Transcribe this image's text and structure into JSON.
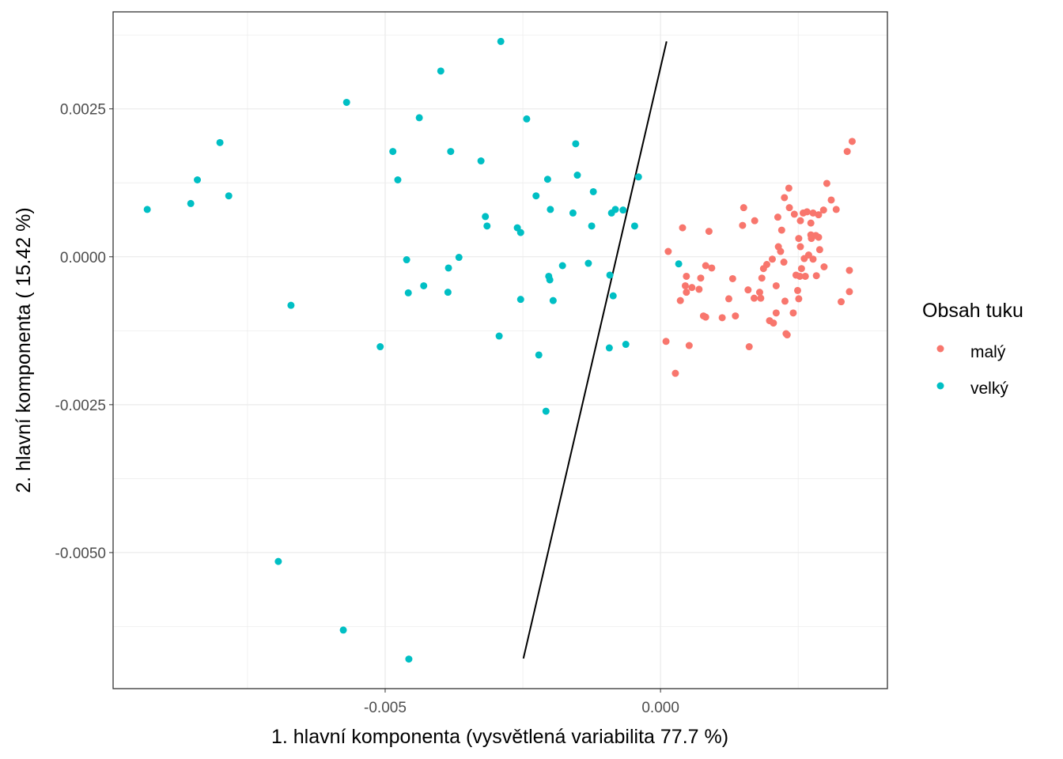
{
  "chart_data": {
    "type": "scatter",
    "title": "",
    "xlabel": "1. hlavní komponenta (vysvětlená variabilita 77.7 %)",
    "ylabel": "2. hlavní komponenta ( 15.42 %)",
    "xlim": [
      -0.00994,
      0.00412
    ],
    "ylim": [
      -0.0073,
      0.00414
    ],
    "x_ticks": [
      -0.005,
      0.0
    ],
    "x_tick_labels": [
      "-0.005",
      "0.000"
    ],
    "y_ticks": [
      0.0025,
      0.0,
      -0.0025,
      -0.005
    ],
    "y_tick_labels": [
      "0.0025",
      "0.0000",
      "-0.0025",
      "-0.0050"
    ],
    "grid": true,
    "legend": {
      "title": "Obsah tuku",
      "position": "right",
      "entries": [
        "malý",
        "velký"
      ]
    },
    "colors": {
      "malý": "#F8766D",
      "velký": "#00BFC4",
      "line": "#000000"
    },
    "series": [
      {
        "name": "malý",
        "points": [
          [
            0.00014,
            9e-05
          ],
          [
            0.0001,
            -0.00143
          ],
          [
            0.00027,
            -0.00197
          ],
          [
            0.00036,
            -0.00074
          ],
          [
            0.0004,
            0.00049
          ],
          [
            0.00045,
            -0.00049
          ],
          [
            0.00047,
            -0.00033
          ],
          [
            0.00047,
            -0.0006
          ],
          [
            0.00052,
            -0.0015
          ],
          [
            0.00057,
            -0.00052
          ],
          [
            0.0007,
            -0.00055
          ],
          [
            0.00073,
            -0.00036
          ],
          [
            0.00078,
            -0.001
          ],
          [
            0.00082,
            -0.00102
          ],
          [
            0.00082,
            -0.00015
          ],
          [
            0.00088,
            0.00043
          ],
          [
            0.00093,
            -0.00019
          ],
          [
            0.00112,
            -0.00103
          ],
          [
            0.00124,
            -0.00071
          ],
          [
            0.00131,
            -0.00037
          ],
          [
            0.00136,
            -0.001
          ],
          [
            0.00149,
            0.00053
          ],
          [
            0.00151,
            0.00083
          ],
          [
            0.00159,
            -0.00056
          ],
          [
            0.00161,
            -0.00152
          ],
          [
            0.0017,
            -0.0007
          ],
          [
            0.00171,
            0.00061
          ],
          [
            0.0018,
            -0.0006
          ],
          [
            0.00182,
            -0.0007
          ],
          [
            0.00184,
            -0.00036
          ],
          [
            0.00187,
            -0.0002
          ],
          [
            0.00193,
            -0.00013
          ],
          [
            0.00198,
            -0.00108
          ],
          [
            0.00203,
            -4e-05
          ],
          [
            0.00205,
            -0.00112
          ],
          [
            0.0021,
            -0.00095
          ],
          [
            0.0021,
            -0.00049
          ],
          [
            0.00213,
            0.00067
          ],
          [
            0.00214,
            0.00017
          ],
          [
            0.00218,
            9e-05
          ],
          [
            0.0022,
            0.00045
          ],
          [
            0.00224,
            -9e-05
          ],
          [
            0.00225,
            0.001
          ],
          [
            0.00226,
            -0.00075
          ],
          [
            0.00228,
            -0.0013
          ],
          [
            0.0023,
            -0.00132
          ],
          [
            0.00233,
            0.00116
          ],
          [
            0.00234,
            0.00083
          ],
          [
            0.00241,
            -0.00095
          ],
          [
            0.00243,
            0.00072
          ],
          [
            0.00246,
            -0.00031
          ],
          [
            0.00249,
            -0.00057
          ],
          [
            0.00251,
            0.00031
          ],
          [
            0.00251,
            -0.00071
          ],
          [
            0.00253,
            -0.00033
          ],
          [
            0.00254,
            0.00017
          ],
          [
            0.00254,
            0.00061
          ],
          [
            0.00256,
            -0.0002
          ],
          [
            0.00259,
            0.00074
          ],
          [
            0.00261,
            -3e-05
          ],
          [
            0.00263,
            -0.00033
          ],
          [
            0.00266,
            0.00076
          ],
          [
            0.00269,
            3e-05
          ],
          [
            0.00273,
            0.00057
          ],
          [
            0.00273,
            0.00037
          ],
          [
            0.00274,
            0.00031
          ],
          [
            0.00277,
            -4e-05
          ],
          [
            0.00277,
            0.00074
          ],
          [
            0.00282,
            0.00036
          ],
          [
            0.00283,
            -0.00032
          ],
          [
            0.00287,
            0.00071
          ],
          [
            0.00287,
            0.00033
          ],
          [
            0.00289,
            0.00012
          ],
          [
            0.00296,
            0.00079
          ],
          [
            0.00297,
            -0.00017
          ],
          [
            0.00302,
            0.00124
          ],
          [
            0.0031,
            0.00096
          ],
          [
            0.00319,
            0.0008
          ],
          [
            0.00328,
            -0.00076
          ],
          [
            0.00339,
            0.00178
          ],
          [
            0.00343,
            -0.00023
          ],
          [
            0.00343,
            -0.00059
          ],
          [
            0.00348,
            0.00195
          ]
        ]
      },
      {
        "name": "velký",
        "points": [
          [
            -0.00932,
            0.0008
          ],
          [
            -0.00853,
            0.0009
          ],
          [
            -0.00841,
            0.0013
          ],
          [
            -0.008,
            0.00193
          ],
          [
            -0.00784,
            0.00103
          ],
          [
            -0.00671,
            -0.00082
          ],
          [
            -0.00694,
            -0.00515
          ],
          [
            -0.00576,
            -0.00631
          ],
          [
            -0.00457,
            -0.0068
          ],
          [
            -0.0057,
            0.00261
          ],
          [
            -0.00509,
            -0.00152
          ],
          [
            -0.00486,
            0.00178
          ],
          [
            -0.00477,
            0.0013
          ],
          [
            -0.00461,
            -5e-05
          ],
          [
            -0.00458,
            -0.00061
          ],
          [
            -0.00438,
            0.00235
          ],
          [
            -0.0043,
            -0.00049
          ],
          [
            -0.00399,
            0.00314
          ],
          [
            -0.00381,
            0.00178
          ],
          [
            -0.00385,
            -0.00019
          ],
          [
            -0.00386,
            -0.0006
          ],
          [
            -0.00366,
            -1e-05
          ],
          [
            -0.00326,
            0.00162
          ],
          [
            -0.00318,
            0.00068
          ],
          [
            -0.00315,
            0.00052
          ],
          [
            -0.00293,
            -0.00134
          ],
          [
            -0.0029,
            0.00364
          ],
          [
            -0.0026,
            0.00049
          ],
          [
            -0.00254,
            0.00041
          ],
          [
            -0.00254,
            -0.00072
          ],
          [
            -0.00243,
            0.00233
          ],
          [
            -0.00226,
            0.00103
          ],
          [
            -0.00221,
            -0.00166
          ],
          [
            -0.00208,
            -0.00261
          ],
          [
            -0.00205,
            0.00131
          ],
          [
            -0.00203,
            -0.00033
          ],
          [
            -0.00201,
            -0.00039
          ],
          [
            -0.002,
            0.0008
          ],
          [
            -0.00195,
            -0.00074
          ],
          [
            -0.00178,
            -0.00015
          ],
          [
            -0.00159,
            0.00074
          ],
          [
            -0.00154,
            0.00191
          ],
          [
            -0.00151,
            0.00138
          ],
          [
            -0.00131,
            -0.00011
          ],
          [
            -0.00125,
            0.00052
          ],
          [
            -0.00122,
            0.0011
          ],
          [
            -0.00093,
            -0.00154
          ],
          [
            -0.00092,
            -0.00031
          ],
          [
            -0.00089,
            0.00074
          ],
          [
            -0.00086,
            -0.00066
          ],
          [
            -0.00082,
            0.0008
          ],
          [
            -0.00068,
            0.00079
          ],
          [
            -0.00063,
            -0.00148
          ],
          [
            -0.00047,
            0.00052
          ],
          [
            -0.0004,
            0.00135
          ],
          [
            0.00033,
            -0.00012
          ]
        ]
      }
    ],
    "separating_line": [
      [
        0.00011,
        0.00364
      ],
      [
        -0.00249,
        -0.00679
      ]
    ]
  }
}
